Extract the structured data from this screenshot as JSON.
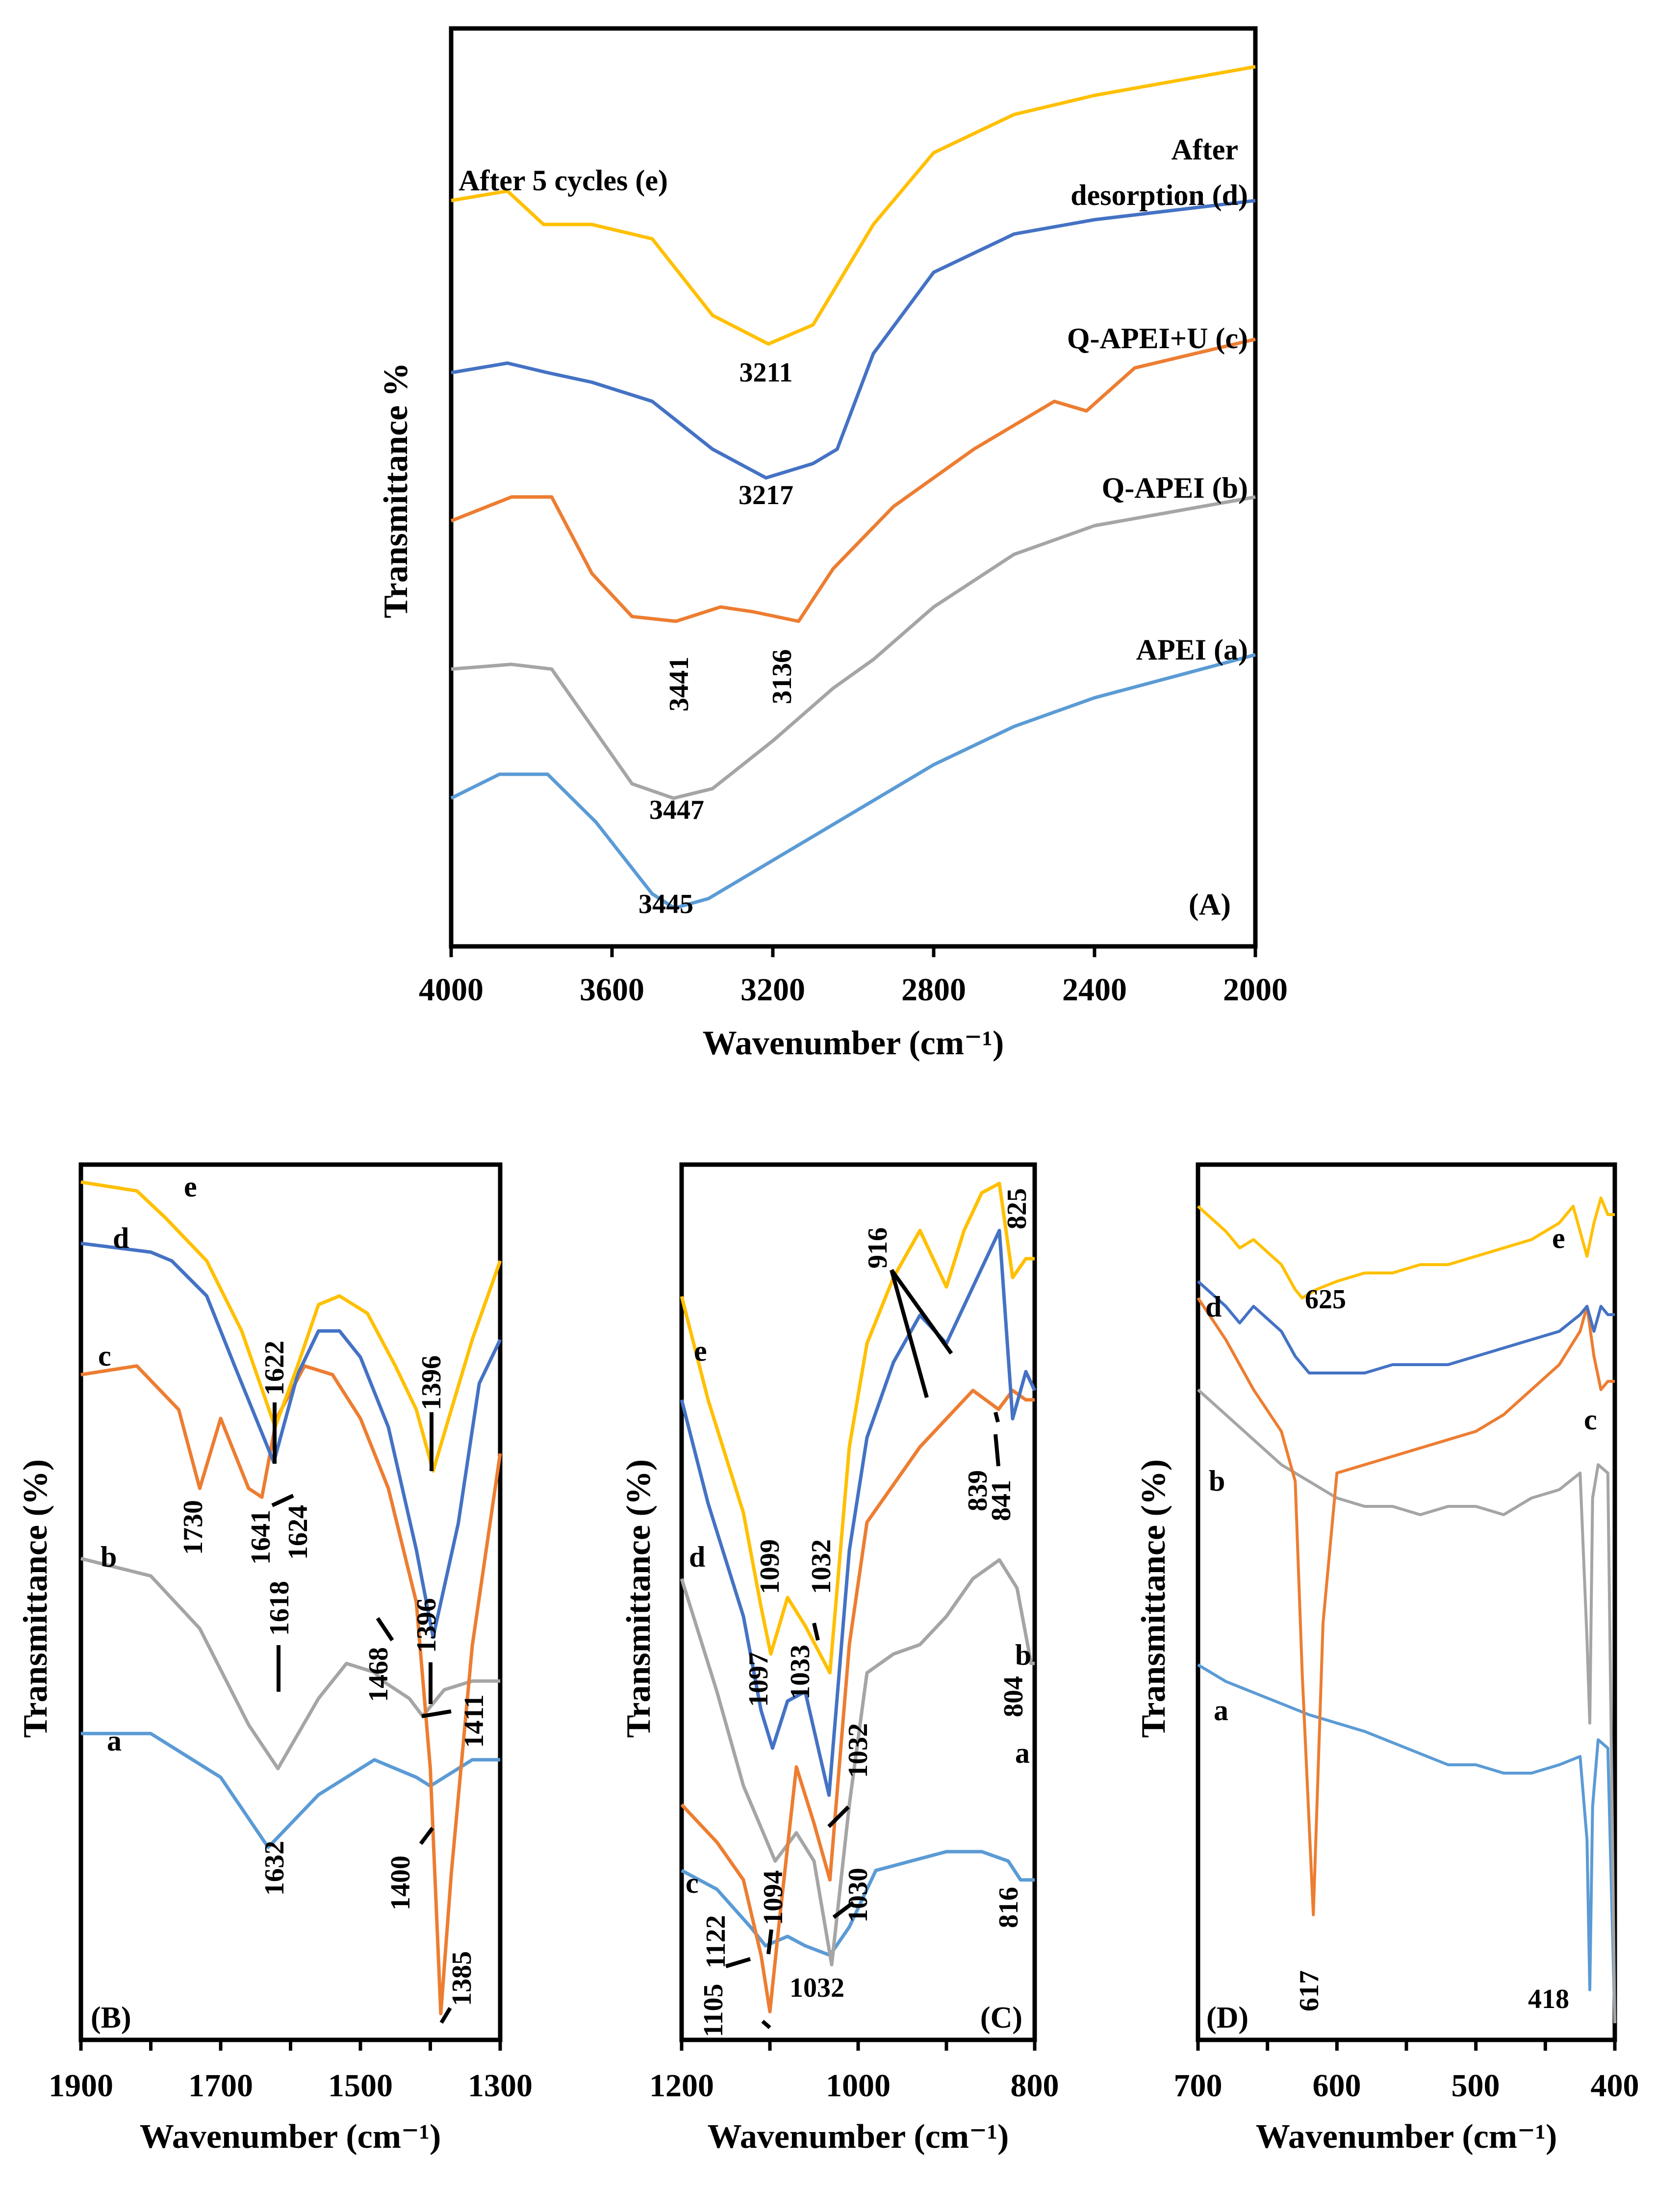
{
  "colors": {
    "a": "#5b9bd5",
    "b": "#a5a5a5",
    "c": "#ed7d31",
    "d": "#4472c4",
    "e": "#ffc000"
  },
  "chart_data": [
    {
      "type": "line",
      "panel": "(A)",
      "xlabel": "Wavenumber (cm⁻¹)",
      "ylabel": "Transmittance %",
      "xlim": [
        4000,
        2000
      ],
      "xticks": [
        "4000",
        "3600",
        "3200",
        "2800",
        "2400",
        "2000"
      ],
      "series": [
        {
          "key": "a",
          "name": "APEI (a)",
          "x": [
            4000,
            3880,
            3760,
            3640,
            3500,
            3445,
            3360,
            3200,
            3000,
            2800,
            2600,
            2400,
            2000
          ],
          "y": [
            -1.5,
            -1.0,
            -1.0,
            -2.0,
            -3.5,
            -3.8,
            -3.6,
            -2.8,
            -1.8,
            -0.8,
            0.0,
            0.6,
            1.5
          ]
        },
        {
          "key": "b",
          "name": "Q-APEI (b)",
          "x": [
            4000,
            3850,
            3750,
            3650,
            3550,
            3447,
            3350,
            3200,
            3050,
            2950,
            2800,
            2600,
            2400,
            2000
          ],
          "y": [
            1.2,
            1.3,
            1.2,
            0.0,
            -1.2,
            -1.5,
            -1.3,
            -0.3,
            0.8,
            1.4,
            2.5,
            3.6,
            4.2,
            4.8
          ]
        },
        {
          "key": "c",
          "name": "Q-APEI+U (c)",
          "x": [
            4000,
            3850,
            3750,
            3650,
            3550,
            3441,
            3330,
            3250,
            3136,
            3050,
            2900,
            2700,
            2500,
            2420,
            2300,
            2000
          ],
          "y": [
            4.3,
            4.8,
            4.8,
            3.2,
            2.3,
            2.2,
            2.5,
            2.4,
            2.2,
            3.3,
            4.6,
            5.8,
            6.8,
            6.6,
            7.5,
            8.1
          ]
        },
        {
          "key": "d",
          "name": "After desorption (d)",
          "x": [
            4000,
            3860,
            3760,
            3650,
            3500,
            3350,
            3217,
            3100,
            3040,
            2950,
            2800,
            2600,
            2400,
            2200,
            2000
          ],
          "y": [
            7.4,
            7.6,
            7.4,
            7.2,
            6.8,
            5.8,
            5.2,
            5.5,
            5.8,
            7.8,
            9.5,
            10.3,
            10.6,
            10.8,
            11.0
          ]
        },
        {
          "key": "e",
          "name": "After 5 cycles (e)",
          "x": [
            4000,
            3860,
            3770,
            3650,
            3500,
            3350,
            3211,
            3100,
            2950,
            2800,
            2600,
            2400,
            2200,
            2000
          ],
          "y": [
            11.0,
            11.2,
            10.5,
            10.5,
            10.2,
            8.6,
            8.0,
            8.4,
            10.5,
            12.0,
            12.8,
            13.2,
            13.5,
            13.8
          ]
        }
      ],
      "labels": [
        "After 5 cycles (e)",
        "After",
        "desorption (d)",
        "Q-APEI+U (c)",
        "Q-APEI (b)",
        "APEI (a)"
      ],
      "annotations": [
        "3211",
        "3217",
        "3441",
        "3136",
        "3447",
        "3445"
      ]
    },
    {
      "type": "line",
      "panel": "(B)",
      "xlabel": "Wavenumber (cm⁻¹)",
      "ylabel": "Transmittance (%)",
      "xlim": [
        1900,
        1300
      ],
      "xticks": [
        "1900",
        "1700",
        "1500",
        "1300"
      ],
      "series": [
        {
          "key": "a",
          "x": [
            1900,
            1800,
            1700,
            1632,
            1560,
            1480,
            1420,
            1400,
            1340,
            1300
          ],
          "y": [
            3.2,
            3.2,
            2.7,
            1.9,
            2.5,
            2.9,
            2.7,
            2.6,
            2.9,
            2.9
          ]
        },
        {
          "key": "b",
          "x": [
            1900,
            1800,
            1730,
            1660,
            1618,
            1560,
            1520,
            1480,
            1468,
            1430,
            1411,
            1380,
            1340,
            1300
          ],
          "y": [
            5.2,
            5.0,
            4.4,
            3.3,
            2.8,
            3.6,
            4.0,
            3.9,
            3.8,
            3.6,
            3.4,
            3.7,
            3.8,
            3.8
          ]
        },
        {
          "key": "c",
          "x": [
            1900,
            1820,
            1760,
            1730,
            1700,
            1680,
            1660,
            1641,
            1620,
            1580,
            1540,
            1500,
            1460,
            1420,
            1400,
            1385,
            1370,
            1340,
            1300
          ],
          "y": [
            7.3,
            7.4,
            6.9,
            6.0,
            6.8,
            6.4,
            6.0,
            5.9,
            6.8,
            7.4,
            7.3,
            6.8,
            6.0,
            4.7,
            2.8,
            0.0,
            1.6,
            4.2,
            6.4
          ]
        },
        {
          "key": "d",
          "x": [
            1900,
            1800,
            1770,
            1720,
            1680,
            1624,
            1590,
            1560,
            1530,
            1500,
            1460,
            1420,
            1396,
            1360,
            1330,
            1300
          ],
          "y": [
            8.8,
            8.7,
            8.6,
            8.2,
            7.4,
            6.3,
            7.3,
            7.8,
            7.8,
            7.5,
            6.7,
            5.3,
            4.3,
            5.6,
            7.2,
            7.7
          ]
        },
        {
          "key": "e",
          "x": [
            1900,
            1820,
            1780,
            1720,
            1670,
            1622,
            1590,
            1560,
            1530,
            1490,
            1450,
            1420,
            1396,
            1370,
            1340,
            1300
          ],
          "y": [
            9.5,
            9.4,
            9.1,
            8.6,
            7.8,
            6.7,
            7.4,
            8.1,
            8.2,
            8.0,
            7.4,
            6.9,
            6.2,
            6.9,
            7.7,
            8.6
          ]
        }
      ],
      "labels": [
        "e",
        "d",
        "c",
        "b",
        "a"
      ],
      "annotations": [
        "1622",
        "1396",
        "1641",
        "1624",
        "1730",
        "1396",
        "1618",
        "1468",
        "1411",
        "1632",
        "1400",
        "1385"
      ]
    },
    {
      "type": "line",
      "panel": "(C)",
      "xlabel": "Wavenumber (cm⁻¹)",
      "ylabel": "Transmittance (%)",
      "xlim": [
        1200,
        800
      ],
      "xticks": [
        "1200",
        "1000",
        "800"
      ],
      "series": [
        {
          "key": "a",
          "x": [
            1200,
            1160,
            1122,
            1105,
            1080,
            1060,
            1032,
            1010,
            980,
            940,
            900,
            860,
            830,
            816,
            800
          ],
          "y": [
            1.5,
            1.3,
            0.9,
            0.7,
            0.8,
            0.7,
            0.6,
            0.9,
            1.5,
            1.6,
            1.7,
            1.7,
            1.6,
            1.4,
            1.4
          ]
        },
        {
          "key": "b",
          "x": [
            1200,
            1160,
            1130,
            1094,
            1070,
            1050,
            1030,
            1010,
            990,
            960,
            930,
            900,
            870,
            840,
            820,
            804,
            800
          ],
          "y": [
            4.6,
            3.4,
            2.4,
            1.6,
            1.9,
            1.6,
            0.5,
            2.2,
            3.6,
            3.8,
            3.9,
            4.2,
            4.6,
            4.8,
            4.5,
            3.7,
            3.7
          ]
        },
        {
          "key": "c",
          "x": [
            1200,
            1160,
            1130,
            1110,
            1100,
            1090,
            1070,
            1050,
            1032,
            1010,
            990,
            960,
            930,
            900,
            870,
            841,
            825,
            810,
            800
          ],
          "y": [
            2.2,
            1.8,
            1.4,
            0.6,
            0.0,
            0.9,
            2.6,
            2.0,
            1.4,
            3.9,
            5.2,
            5.6,
            6.0,
            6.3,
            6.6,
            6.4,
            6.6,
            6.5,
            6.5
          ]
        },
        {
          "key": "d",
          "x": [
            1200,
            1170,
            1130,
            1110,
            1097,
            1080,
            1060,
            1033,
            1010,
            990,
            960,
            930,
            900,
            880,
            860,
            840,
            825,
            810,
            800
          ],
          "y": [
            6.5,
            5.4,
            4.2,
            3.2,
            2.8,
            3.3,
            3.4,
            2.3,
            4.9,
            6.1,
            6.9,
            7.4,
            7.1,
            7.5,
            7.9,
            8.3,
            6.3,
            6.8,
            6.6
          ]
        },
        {
          "key": "e",
          "x": [
            1200,
            1170,
            1130,
            1110,
            1099,
            1080,
            1060,
            1032,
            1010,
            990,
            960,
            930,
            900,
            880,
            860,
            840,
            825,
            810,
            800
          ],
          "y": [
            7.6,
            6.5,
            5.3,
            4.3,
            3.8,
            4.4,
            4.1,
            3.6,
            6.0,
            7.1,
            7.8,
            8.3,
            7.7,
            8.3,
            8.7,
            8.8,
            7.8,
            8.0,
            8.0
          ]
        }
      ],
      "labels": [
        "e",
        "d",
        "c",
        "b",
        "a"
      ],
      "annotations": [
        "916",
        "825",
        "1099",
        "1032",
        "839",
        "841",
        "1097",
        "1033",
        "804",
        "1032",
        "1094",
        "1030",
        "1122",
        "816",
        "1105",
        "1032"
      ]
    },
    {
      "type": "line",
      "panel": "(D)",
      "xlabel": "Wavenumber (cm⁻¹)",
      "ylabel": "Transmittance (%)",
      "xlim": [
        700,
        400
      ],
      "xticks": [
        "700",
        "600",
        "500",
        "400"
      ],
      "series": [
        {
          "key": "a",
          "x": [
            700,
            680,
            650,
            620,
            600,
            580,
            550,
            520,
            500,
            480,
            460,
            440,
            425,
            420,
            418,
            416,
            412,
            405,
            400
          ],
          "y": [
            4.3,
            4.1,
            3.9,
            3.7,
            3.6,
            3.5,
            3.3,
            3.1,
            3.1,
            3.0,
            3.0,
            3.1,
            3.2,
            2.2,
            0.4,
            2.6,
            3.4,
            3.3,
            0.0
          ]
        },
        {
          "key": "b",
          "x": [
            700,
            680,
            660,
            640,
            620,
            600,
            580,
            560,
            540,
            520,
            500,
            480,
            460,
            440,
            425,
            420,
            418,
            416,
            412,
            405,
            400
          ],
          "y": [
            7.6,
            7.3,
            7.0,
            6.7,
            6.5,
            6.3,
            6.2,
            6.2,
            6.1,
            6.2,
            6.2,
            6.1,
            6.3,
            6.4,
            6.6,
            4.6,
            3.6,
            6.3,
            6.7,
            6.6,
            0.0
          ]
        },
        {
          "key": "c",
          "x": [
            700,
            680,
            660,
            640,
            630,
            625,
            617,
            610,
            600,
            580,
            560,
            540,
            520,
            500,
            480,
            460,
            440,
            425,
            420,
            415,
            410,
            405,
            400
          ],
          "y": [
            8.7,
            8.2,
            7.6,
            7.1,
            6.5,
            4.2,
            1.3,
            4.8,
            6.6,
            6.7,
            6.8,
            6.9,
            7.0,
            7.1,
            7.3,
            7.6,
            7.9,
            8.3,
            8.6,
            8.0,
            7.6,
            7.7,
            7.7
          ]
        },
        {
          "key": "d",
          "x": [
            700,
            680,
            670,
            660,
            640,
            630,
            620,
            600,
            580,
            560,
            540,
            520,
            500,
            480,
            460,
            440,
            425,
            420,
            415,
            410,
            405,
            400
          ],
          "y": [
            8.9,
            8.6,
            8.4,
            8.6,
            8.3,
            8.0,
            7.8,
            7.8,
            7.8,
            7.9,
            7.9,
            7.9,
            8.0,
            8.1,
            8.2,
            8.3,
            8.5,
            8.6,
            8.3,
            8.6,
            8.5,
            8.5
          ]
        },
        {
          "key": "e",
          "x": [
            700,
            680,
            670,
            660,
            640,
            630,
            625,
            615,
            600,
            580,
            560,
            540,
            520,
            500,
            480,
            460,
            440,
            430,
            420,
            415,
            410,
            405,
            400
          ],
          "y": [
            9.8,
            9.5,
            9.3,
            9.4,
            9.1,
            8.8,
            8.7,
            8.8,
            8.9,
            9.0,
            9.0,
            9.1,
            9.1,
            9.2,
            9.3,
            9.4,
            9.6,
            9.8,
            9.2,
            9.6,
            9.9,
            9.7,
            9.7
          ]
        }
      ],
      "labels": [
        "e",
        "d",
        "c",
        "b",
        "a"
      ],
      "annotations": [
        "625",
        "617",
        "418"
      ]
    }
  ]
}
